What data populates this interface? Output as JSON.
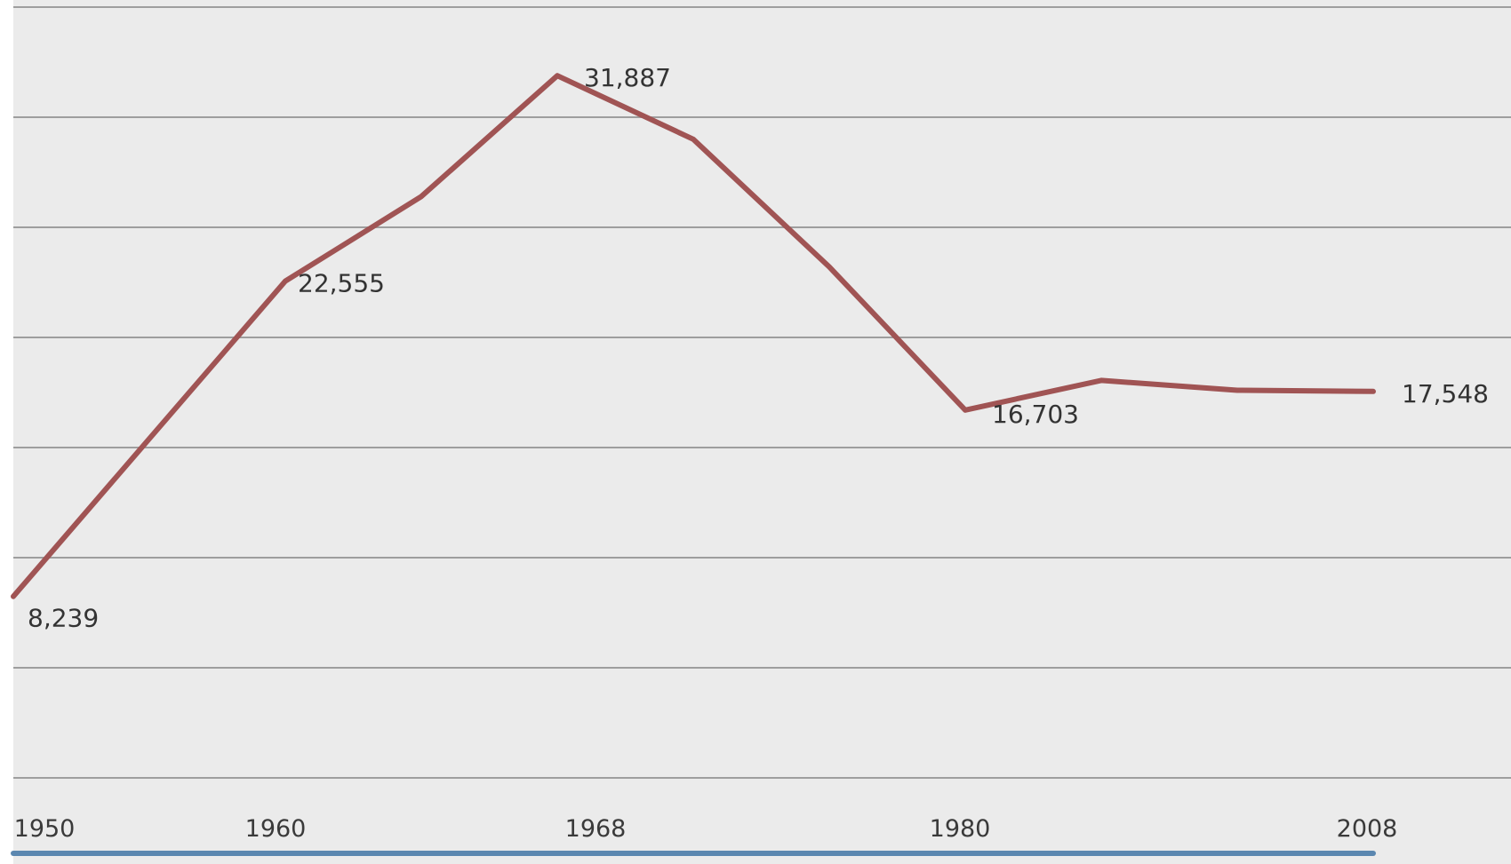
{
  "chart_data": {
    "type": "line",
    "title": "",
    "xlabel": "",
    "ylabel": "",
    "grid": true,
    "legend": "none",
    "x_ticks": [
      "1950",
      "1960",
      "1968",
      "1980",
      "2008"
    ],
    "series": [
      {
        "color": "#a05454",
        "points": [
          {
            "x": 1950,
            "y": 8239
          },
          {
            "x": 1955,
            "y": 15400
          },
          {
            "x": 1960,
            "y": 22555
          },
          {
            "x": 1965,
            "y": 26400
          },
          {
            "x": 1970,
            "y": 31887
          },
          {
            "x": 1975,
            "y": 29000
          },
          {
            "x": 1980,
            "y": 23200
          },
          {
            "x": 1985,
            "y": 16703
          },
          {
            "x": 1990,
            "y": 18050
          },
          {
            "x": 1995,
            "y": 17600
          },
          {
            "x": 2000,
            "y": 17548
          }
        ]
      }
    ],
    "data_labels": [
      {
        "x": 1950,
        "y": 8239,
        "text": "8,239"
      },
      {
        "x": 1960,
        "y": 22555,
        "text": "22,555"
      },
      {
        "x": 1970,
        "y": 31887,
        "text": "31,887"
      },
      {
        "x": 1985,
        "y": 16703,
        "text": "16,703"
      },
      {
        "x": 2000,
        "y": 17548,
        "text": "17,548"
      }
    ],
    "ylim": [
      0,
      35000
    ],
    "gridlines": [
      5000,
      10000,
      15000,
      20000,
      25000,
      30000,
      35000
    ],
    "colors": {
      "plot_background": "#ebebeb",
      "gridline": "#9e9e9e",
      "line": "#a05454",
      "axis_accent": "#5b87b0"
    }
  }
}
